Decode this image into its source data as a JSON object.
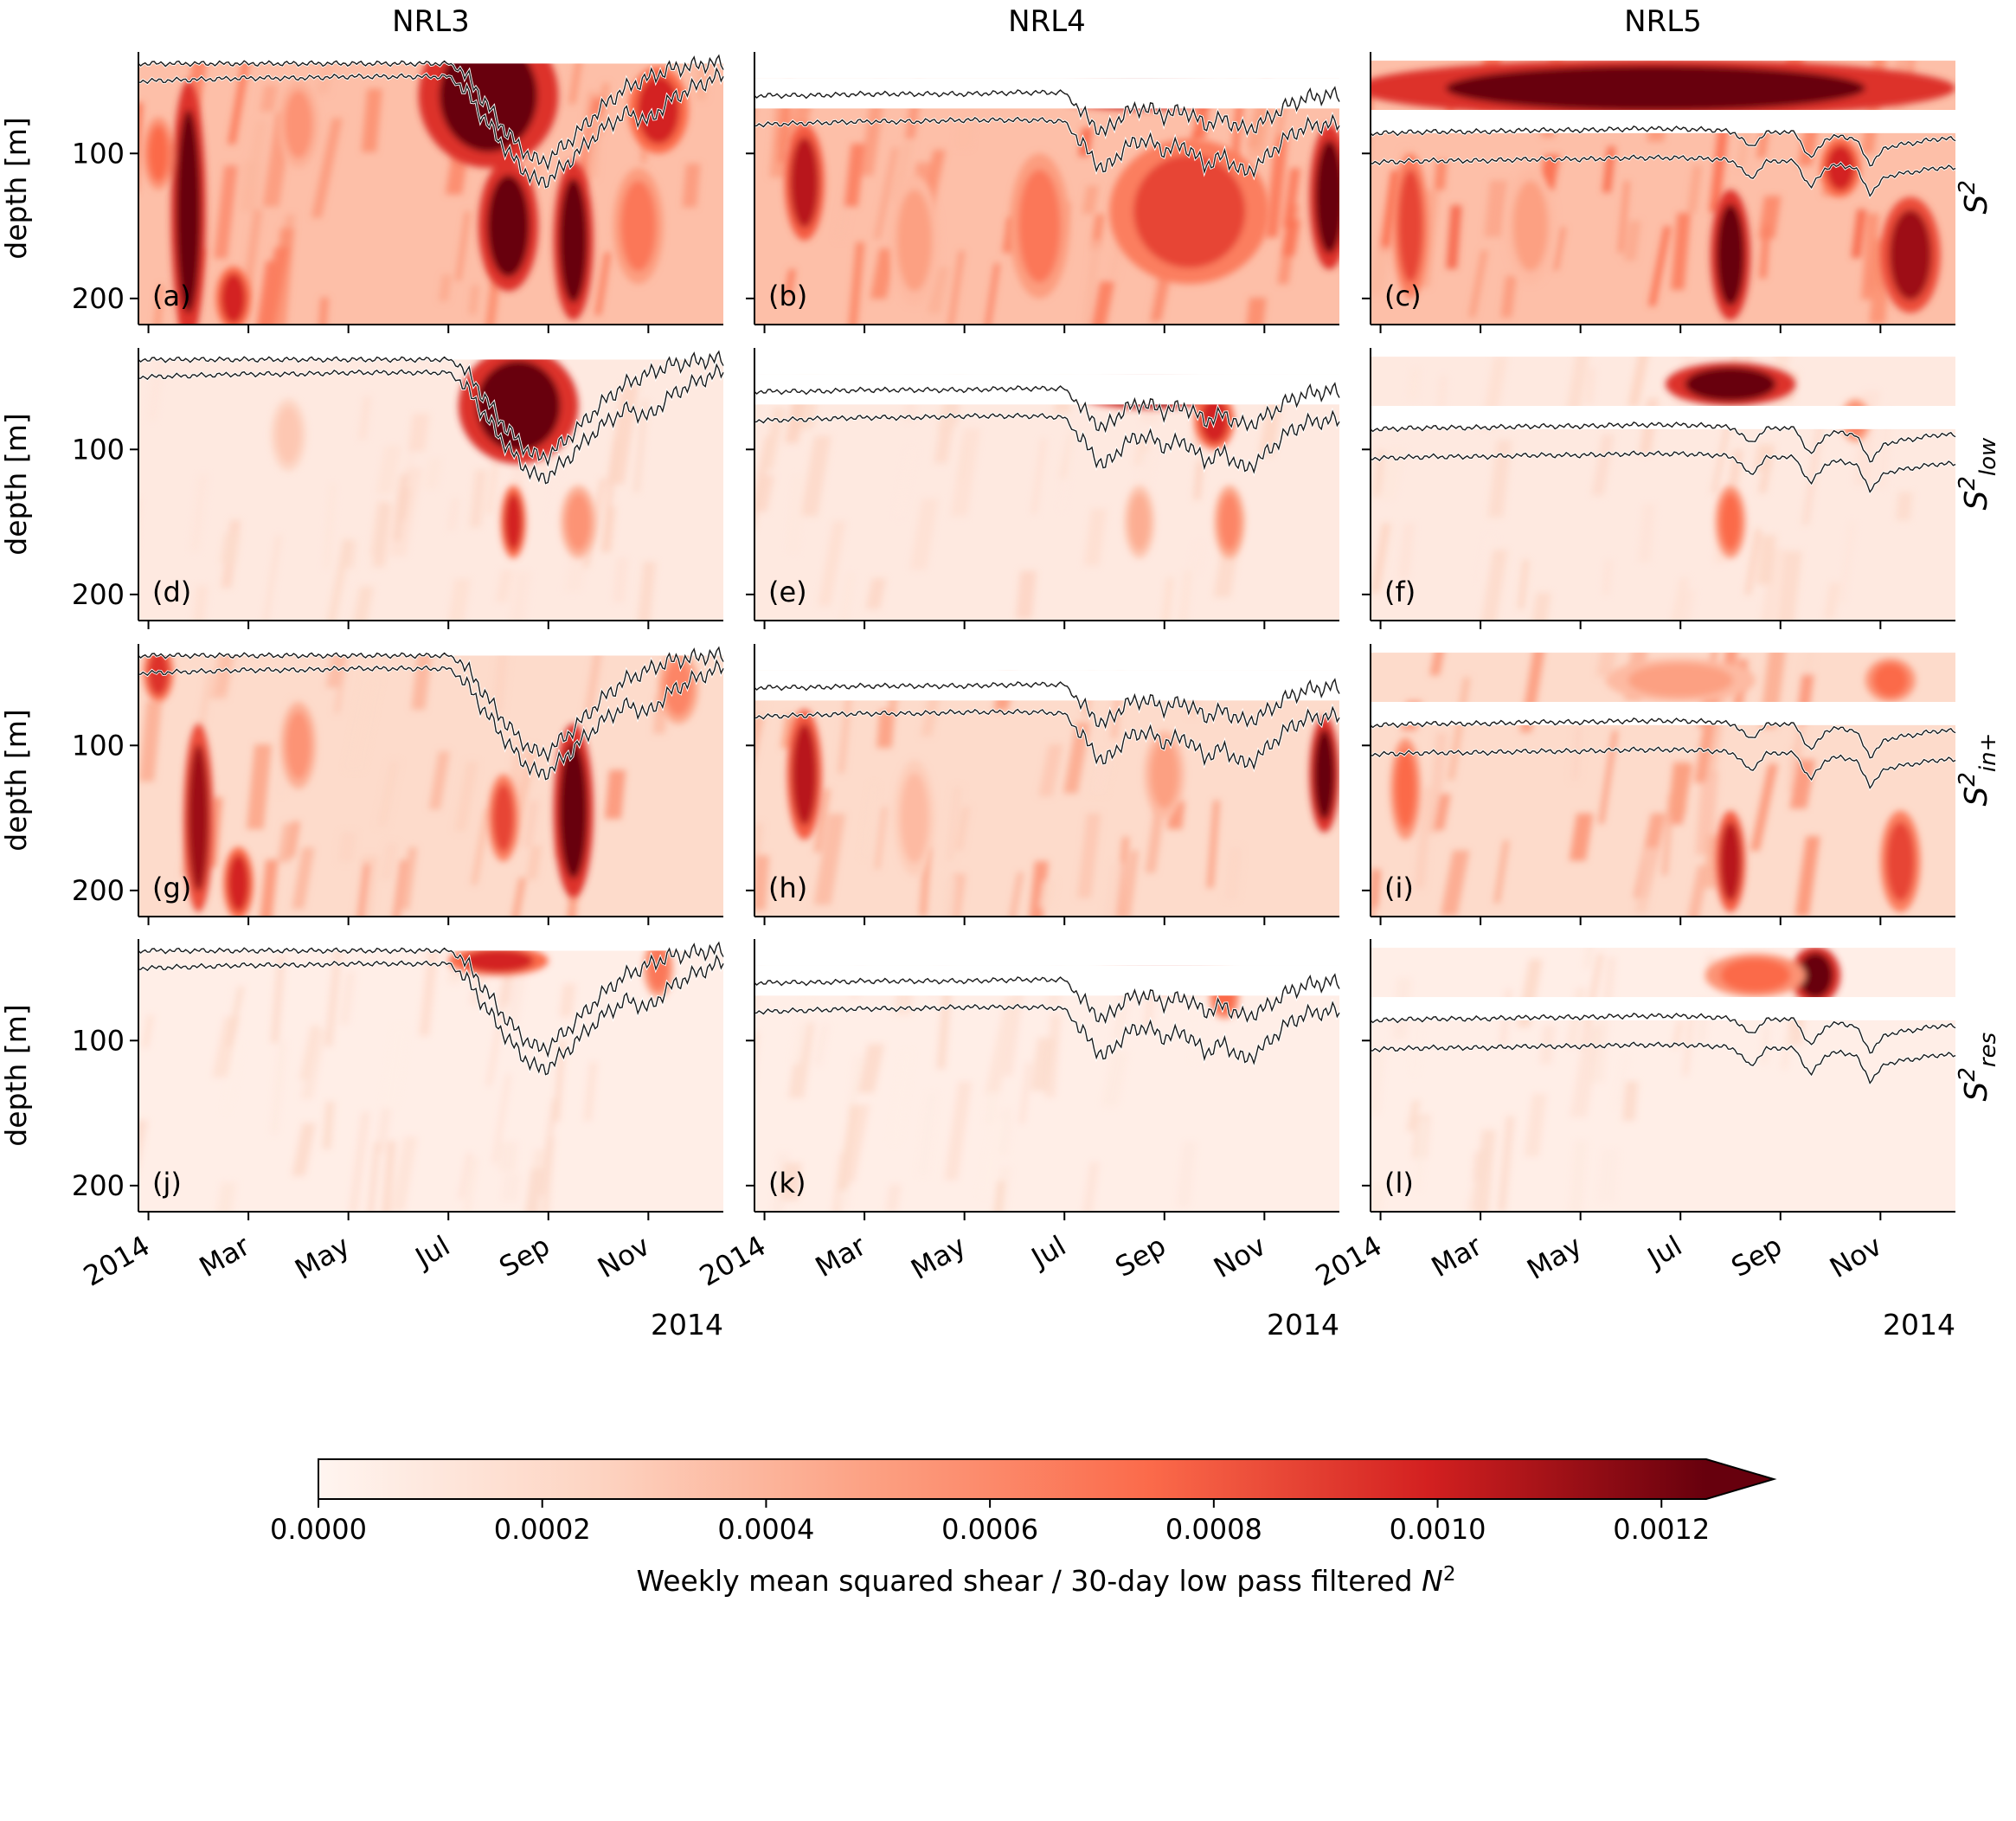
{
  "chart_data": {
    "type": "heatmap",
    "columns": [
      "NRL3",
      "NRL4",
      "NRL5"
    ],
    "row_labels": [
      {
        "base": "S",
        "sup": "2",
        "sub": ""
      },
      {
        "base": "S",
        "sup": "2",
        "sub": "low"
      },
      {
        "base": "S",
        "sup": "2",
        "sub": "in+"
      },
      {
        "base": "S",
        "sup": "2",
        "sub": "res"
      }
    ],
    "panel_letters": [
      "(a)",
      "(b)",
      "(c)",
      "(d)",
      "(e)",
      "(f)",
      "(g)",
      "(h)",
      "(i)",
      "(j)",
      "(k)",
      "(l)"
    ],
    "ylabel": "depth [m]",
    "yticks": [
      100,
      200
    ],
    "ylim": [
      30,
      218
    ],
    "xticks": [
      "2014",
      "Mar",
      "May",
      "Jul",
      "Sep",
      "Nov"
    ],
    "xtick_months": [
      0,
      2,
      4,
      6,
      8,
      10
    ],
    "xlim_months": [
      -0.2,
      11.5
    ],
    "xaxis_year": "2014",
    "colorbar": {
      "label": "Weekly mean squared shear / 30-day low pass filtered ",
      "label_symbol": "N",
      "label_sup": "2",
      "ticks": [
        "0.0000",
        "0.0002",
        "0.0004",
        "0.0006",
        "0.0008",
        "0.0010",
        "0.0012"
      ],
      "tick_values": [
        0,
        0.0002,
        0.0004,
        0.0006,
        0.0008,
        0.001,
        0.0012
      ],
      "range": [
        0,
        0.00124
      ],
      "extend": "max",
      "colormap": "Reds",
      "colors": [
        "#fff5f0",
        "#fcbba1",
        "#fb6a4a",
        "#cb181d",
        "#67000d"
      ]
    },
    "contour_color": "#1a1a1a",
    "moorings": [
      {
        "name": "NRL3",
        "data_top": 38,
        "gap": null,
        "contour_lines": [
          {
            "months": [
              0,
              1,
              2,
              3,
              4,
              5,
              5.5,
              6,
              6.3,
              6.6,
              7,
              7.4,
              7.8,
              8,
              8.4,
              8.8,
              9.2,
              9.6,
              10,
              10.4,
              10.8,
              11.2,
              11.5
            ],
            "depth": [
              38,
              38,
              38,
              38,
              38,
              38,
              38,
              38,
              44,
              58,
              78,
              95,
              106,
              104,
              92,
              78,
              64,
              54,
              48,
              42,
              40,
              38,
              38
            ]
          },
          {
            "months": [
              0,
              1,
              2,
              3,
              4,
              5,
              5.5,
              6,
              6.3,
              6.6,
              7,
              7.4,
              7.8,
              8,
              8.4,
              8.8,
              9.2,
              9.6,
              10,
              10.4,
              10.8,
              11.2,
              11.5
            ],
            "depth": [
              50,
              49,
              48,
              48,
              47,
              47,
              47,
              47,
              55,
              70,
              90,
              108,
              120,
              118,
              106,
              92,
              80,
              72,
              78,
              64,
              56,
              50,
              46
            ]
          }
        ]
      },
      {
        "name": "NRL4",
        "data_top": 48,
        "gap": [
          48,
          69
        ],
        "contour_lines": [
          {
            "months": [
              0,
              1,
              2,
              3,
              4,
              5,
              5.5,
              6,
              6.4,
              6.8,
              7.2,
              7.6,
              8,
              8.4,
              8.8,
              9.2,
              9.6,
              10,
              10.4,
              10.8,
              11.2,
              11.5
            ],
            "depth": [
              60,
              60,
              59,
              59,
              59,
              58,
              58,
              58,
              74,
              86,
              72,
              68,
              74,
              70,
              80,
              76,
              84,
              78,
              68,
              62,
              60,
              60
            ]
          },
          {
            "months": [
              0,
              1,
              2,
              3,
              4,
              5,
              5.5,
              6,
              6.4,
              6.8,
              7.2,
              7.6,
              8,
              8.4,
              8.8,
              9.2,
              9.6,
              10,
              10.4,
              10.8,
              11.2,
              11.5
            ],
            "depth": [
              80,
              79,
              78,
              78,
              77,
              77,
              77,
              78,
              96,
              112,
              96,
              90,
              98,
              94,
              108,
              102,
              114,
              104,
              90,
              82,
              80,
              80
            ]
          }
        ]
      },
      {
        "name": "NRL5",
        "data_top": 36,
        "gap": [
          70,
          86
        ],
        "contour_lines": [
          {
            "months": [
              0,
              1,
              2,
              3,
              4,
              5,
              6,
              6.8,
              7.1,
              7.4,
              7.7,
              8,
              8.3,
              8.6,
              8.9,
              9.2,
              9.5,
              9.8,
              10.1,
              10.4,
              10.8,
              11.1,
              11.5
            ],
            "depth": [
              86,
              85,
              85,
              84,
              84,
              83,
              83,
              84,
              86,
              96,
              86,
              85,
              86,
              104,
              90,
              88,
              90,
              108,
              96,
              94,
              92,
              90,
              90
            ]
          },
          {
            "months": [
              0,
              1,
              2,
              3,
              4,
              5,
              6,
              6.8,
              7.1,
              7.4,
              7.7,
              8,
              8.3,
              8.6,
              8.9,
              9.2,
              9.5,
              9.8,
              10.1,
              10.4,
              10.8,
              11.1,
              11.5
            ],
            "depth": [
              106,
              105,
              105,
              104,
              104,
              103,
              103,
              104,
              106,
              118,
              106,
              105,
              106,
              124,
              110,
              108,
              110,
              128,
              116,
              114,
              112,
              110,
              110
            ]
          }
        ]
      }
    ],
    "intense_blobs": [
      [
        [
          {
            "m": 0.8,
            "d": 140,
            "rm": 0.35,
            "rd": 90,
            "v": 1.0
          },
          {
            "m": 0.2,
            "d": 100,
            "rm": 0.3,
            "rd": 25,
            "v": 0.6
          },
          {
            "m": 1.7,
            "d": 200,
            "rm": 0.35,
            "rd": 22,
            "v": 0.8
          },
          {
            "m": 3.0,
            "d": 80,
            "rm": 0.4,
            "rd": 30,
            "v": 0.45
          },
          {
            "m": 6.8,
            "d": 60,
            "rm": 1.4,
            "rd": 50,
            "v": 1.0
          },
          {
            "m": 7.2,
            "d": 150,
            "rm": 0.6,
            "rd": 45,
            "v": 1.0
          },
          {
            "m": 8.5,
            "d": 160,
            "rm": 0.4,
            "rd": 55,
            "v": 1.0
          },
          {
            "m": 10.2,
            "d": 70,
            "rm": 0.6,
            "rd": 30,
            "v": 0.8
          },
          {
            "m": 9.8,
            "d": 150,
            "rm": 0.5,
            "rd": 40,
            "v": 0.55
          }
        ],
        [
          {
            "m": 7.4,
            "d": 70,
            "rm": 1.2,
            "rd": 40,
            "v": 1.0
          },
          {
            "m": 7.3,
            "d": 150,
            "rm": 0.25,
            "rd": 25,
            "v": 0.8
          },
          {
            "m": 8.6,
            "d": 150,
            "rm": 0.35,
            "rd": 25,
            "v": 0.45
          },
          {
            "m": 2.8,
            "d": 90,
            "rm": 0.35,
            "rd": 25,
            "v": 0.25
          }
        ],
        [
          {
            "m": 1.0,
            "d": 150,
            "rm": 0.3,
            "rd": 65,
            "v": 0.9
          },
          {
            "m": 0.2,
            "d": 50,
            "rm": 0.3,
            "rd": 20,
            "v": 0.75
          },
          {
            "m": 1.8,
            "d": 195,
            "rm": 0.3,
            "rd": 25,
            "v": 0.8
          },
          {
            "m": 3.0,
            "d": 100,
            "rm": 0.35,
            "rd": 30,
            "v": 0.45
          },
          {
            "m": 8.5,
            "d": 145,
            "rm": 0.4,
            "rd": 60,
            "v": 1.0
          },
          {
            "m": 7.1,
            "d": 150,
            "rm": 0.3,
            "rd": 30,
            "v": 0.7
          },
          {
            "m": 10.6,
            "d": 60,
            "rm": 0.4,
            "rd": 25,
            "v": 0.5
          }
        ],
        [
          {
            "m": 7.0,
            "d": 45,
            "rm": 1.0,
            "rd": 10,
            "v": 0.8
          },
          {
            "m": 10.2,
            "d": 50,
            "rm": 0.3,
            "rd": 20,
            "v": 0.55
          }
        ]
      ],
      [
        [
          {
            "m": 0.8,
            "d": 120,
            "rm": 0.4,
            "rd": 40,
            "v": 0.85
          },
          {
            "m": 7.5,
            "d": 58,
            "rm": 1.8,
            "rd": 12,
            "v": 1.0
          },
          {
            "m": 8.5,
            "d": 140,
            "rm": 1.6,
            "rd": 50,
            "v": 0.7
          },
          {
            "m": 11.3,
            "d": 130,
            "rm": 0.4,
            "rd": 50,
            "v": 1.0
          },
          {
            "m": 5.5,
            "d": 150,
            "rm": 0.6,
            "rd": 50,
            "v": 0.55
          },
          {
            "m": 3.0,
            "d": 160,
            "rm": 0.5,
            "rd": 45,
            "v": 0.4
          }
        ],
        [
          {
            "m": 7.7,
            "d": 60,
            "rm": 1.5,
            "rd": 12,
            "v": 1.0
          },
          {
            "m": 9.0,
            "d": 80,
            "rm": 0.4,
            "rd": 20,
            "v": 0.8
          },
          {
            "m": 9.3,
            "d": 150,
            "rm": 0.3,
            "rd": 25,
            "v": 0.5
          },
          {
            "m": 7.5,
            "d": 150,
            "rm": 0.3,
            "rd": 25,
            "v": 0.35
          }
        ],
        [
          {
            "m": 0.8,
            "d": 120,
            "rm": 0.35,
            "rd": 45,
            "v": 0.85
          },
          {
            "m": 11.2,
            "d": 120,
            "rm": 0.3,
            "rd": 40,
            "v": 1.0
          },
          {
            "m": 8.0,
            "d": 120,
            "rm": 0.4,
            "rd": 30,
            "v": 0.4
          },
          {
            "m": 3.0,
            "d": 150,
            "rm": 0.4,
            "rd": 40,
            "v": 0.3
          }
        ],
        [
          {
            "m": 8.0,
            "d": 55,
            "rm": 1.5,
            "rd": 12,
            "v": 0.8
          },
          {
            "m": 9.2,
            "d": 70,
            "rm": 0.3,
            "rd": 15,
            "v": 0.6
          }
        ]
      ],
      [
        [
          {
            "m": 5.5,
            "d": 55,
            "rm": 6.0,
            "rd": 20,
            "v": 1.0
          },
          {
            "m": 7.0,
            "d": 170,
            "rm": 0.4,
            "rd": 45,
            "v": 1.0
          },
          {
            "m": 10.6,
            "d": 170,
            "rm": 0.6,
            "rd": 40,
            "v": 0.9
          },
          {
            "m": 0.6,
            "d": 150,
            "rm": 0.35,
            "rd": 50,
            "v": 0.7
          },
          {
            "m": 9.2,
            "d": 110,
            "rm": 0.4,
            "rd": 20,
            "v": 0.8
          },
          {
            "m": 3.0,
            "d": 150,
            "rm": 0.5,
            "rd": 40,
            "v": 0.4
          }
        ],
        [
          {
            "m": 7.0,
            "d": 55,
            "rm": 1.3,
            "rd": 15,
            "v": 1.0
          },
          {
            "m": 7.0,
            "d": 150,
            "rm": 0.3,
            "rd": 25,
            "v": 0.6
          },
          {
            "m": 9.5,
            "d": 80,
            "rm": 0.3,
            "rd": 15,
            "v": 0.5
          }
        ],
        [
          {
            "m": 7.0,
            "d": 180,
            "rm": 0.3,
            "rd": 35,
            "v": 0.85
          },
          {
            "m": 10.4,
            "d": 180,
            "rm": 0.4,
            "rd": 35,
            "v": 0.7
          },
          {
            "m": 10.2,
            "d": 55,
            "rm": 0.5,
            "rd": 15,
            "v": 0.6
          },
          {
            "m": 0.5,
            "d": 130,
            "rm": 0.3,
            "rd": 35,
            "v": 0.6
          },
          {
            "m": 6.0,
            "d": 55,
            "rm": 1.5,
            "rd": 15,
            "v": 0.4
          }
        ],
        [
          {
            "m": 8.7,
            "d": 55,
            "rm": 0.5,
            "rd": 20,
            "v": 1.0
          },
          {
            "m": 7.5,
            "d": 55,
            "rm": 1.0,
            "rd": 15,
            "v": 0.6
          }
        ]
      ]
    ]
  }
}
